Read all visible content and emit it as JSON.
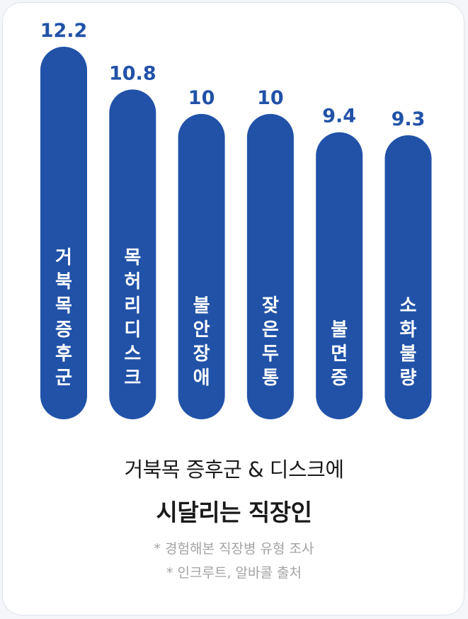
{
  "chart_data": {
    "type": "bar",
    "orientation": "vertical",
    "categories": [
      "거북목증후군",
      "목허리디스크",
      "불안장애",
      "잦은두통",
      "불면증",
      "소화불량"
    ],
    "values": [
      12.2,
      10.8,
      10,
      10,
      9.4,
      9.3
    ],
    "value_labels": [
      "12.2",
      "10.8",
      "10",
      "10",
      "9.4",
      "9.3"
    ],
    "title": "거북목 증후군 & 디스크에",
    "subtitle": "시달리는 직장인",
    "notes": [
      "* 경험해본 직장병 유형 조사",
      "* 인크루트, 알바콜 출처"
    ],
    "bar_color": "#2152a8",
    "grid": false,
    "legend": "none"
  }
}
